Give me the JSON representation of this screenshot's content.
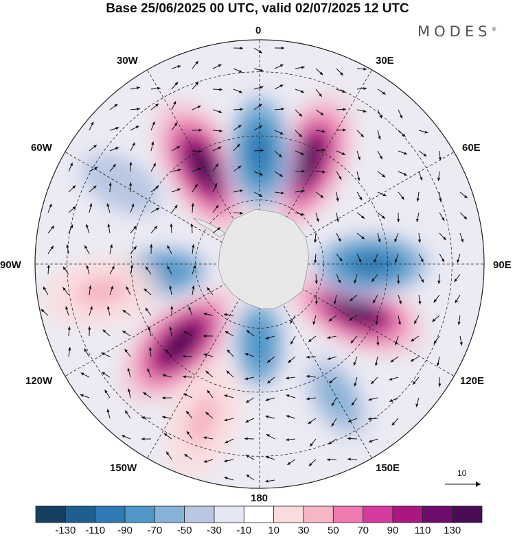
{
  "title": "Base 25/06/2025 00 UTC, valid 02/07/2025 12 UTC",
  "brand": {
    "name": "MODES",
    "mark": "®"
  },
  "lon_labels": {
    "deg0": "0",
    "deg30e": "30E",
    "deg60e": "60E",
    "deg90e": "90E",
    "deg120e": "120E",
    "deg150e": "150E",
    "deg180": "180",
    "deg150w": "150W",
    "deg120w": "120W",
    "deg90w": "90W",
    "deg60w": "60W",
    "deg30w": "30W"
  },
  "reference_vector": {
    "label": "10"
  },
  "colorbar": {
    "colors": [
      "#173f5f",
      "#1f5f8f",
      "#2e7ab4",
      "#4f97c8",
      "#86b2d8",
      "#b9c7e3",
      "#e5e6f3",
      "#ffffff",
      "#fbdcdc",
      "#f6b6c4",
      "#ee7ab0",
      "#d63a9c",
      "#a9177f",
      "#6e0c6e",
      "#4a0d55"
    ],
    "labels": [
      "-130",
      "-110",
      "-90",
      "-70",
      "-50",
      "-30",
      "-10",
      "10",
      "30",
      "50",
      "70",
      "90",
      "110",
      "130"
    ]
  },
  "anomaly_centers": [
    {
      "lon": -30,
      "lat": -55,
      "value": 130
    },
    {
      "lon": 25,
      "lat": -55,
      "value": 130
    },
    {
      "lon": 115,
      "lat": -57,
      "value": 130
    },
    {
      "lon": -135,
      "lat": -55,
      "value": 130
    },
    {
      "lon": 0,
      "lat": -55,
      "value": -110
    },
    {
      "lon": 90,
      "lat": -55,
      "value": -110
    },
    {
      "lon": -95,
      "lat": -60,
      "value": -90
    },
    {
      "lon": 180,
      "lat": -65,
      "value": -90
    },
    {
      "lon": -60,
      "lat": -40,
      "value": -50
    },
    {
      "lon": 150,
      "lat": -42,
      "value": -70
    },
    {
      "lon": -100,
      "lat": -40,
      "value": 30
    },
    {
      "lon": -160,
      "lat": -38,
      "value": 30
    }
  ]
}
